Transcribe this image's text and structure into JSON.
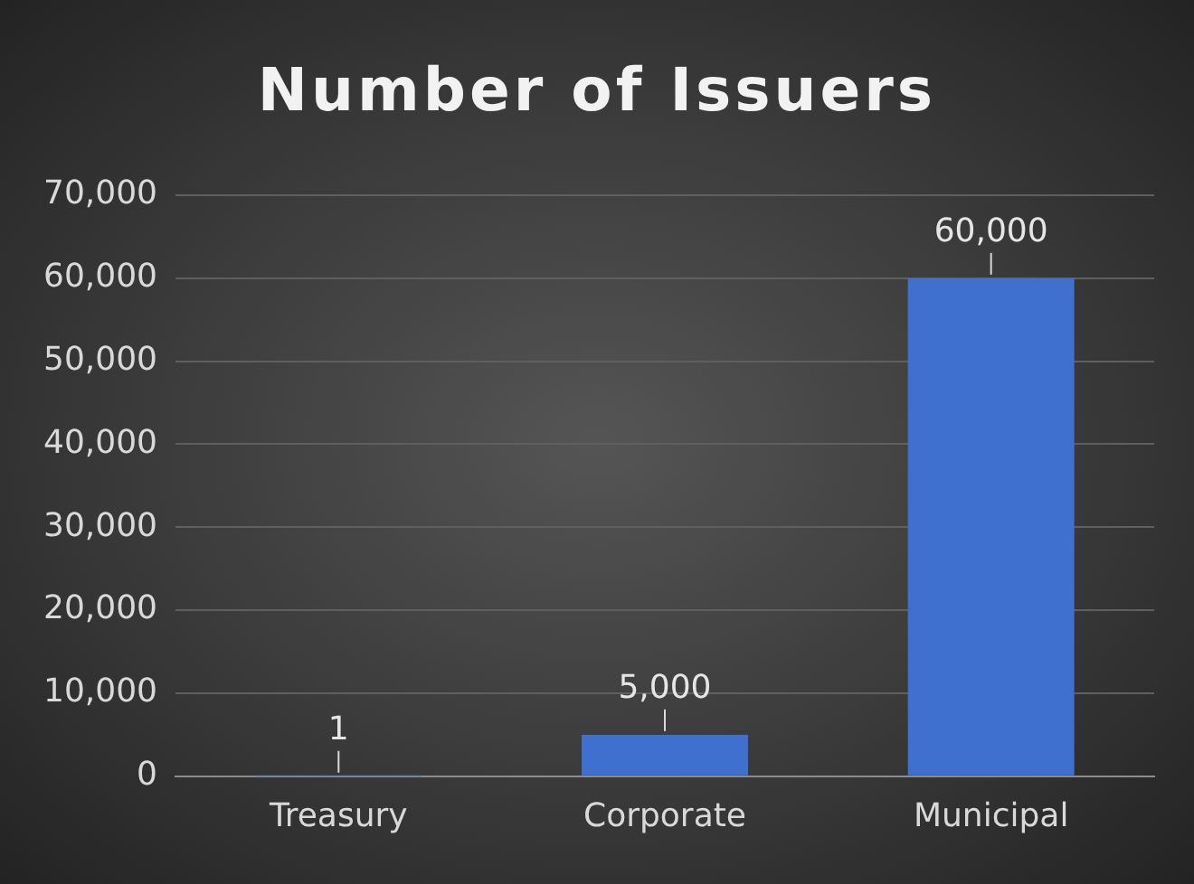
{
  "chart_data": {
    "type": "bar",
    "title": "Number of Issuers",
    "categories": [
      "Treasury",
      "Corporate",
      "Municipal"
    ],
    "values": [
      1,
      5000,
      60000
    ],
    "color": "#3f6fcf",
    "ylim": [
      0,
      70000
    ],
    "yticks": [
      {
        "value": 0,
        "label": "0"
      },
      {
        "value": 10000,
        "label": "10,000"
      },
      {
        "value": 20000,
        "label": "20,000"
      },
      {
        "value": 30000,
        "label": "30,000"
      },
      {
        "value": 40000,
        "label": "40,000"
      },
      {
        "value": 50000,
        "label": "50,000"
      },
      {
        "value": 60000,
        "label": "60,000"
      },
      {
        "value": 70000,
        "label": "70,000"
      }
    ],
    "grid": "y",
    "value_labels": [
      "1",
      "5,000",
      "60,000"
    ]
  }
}
